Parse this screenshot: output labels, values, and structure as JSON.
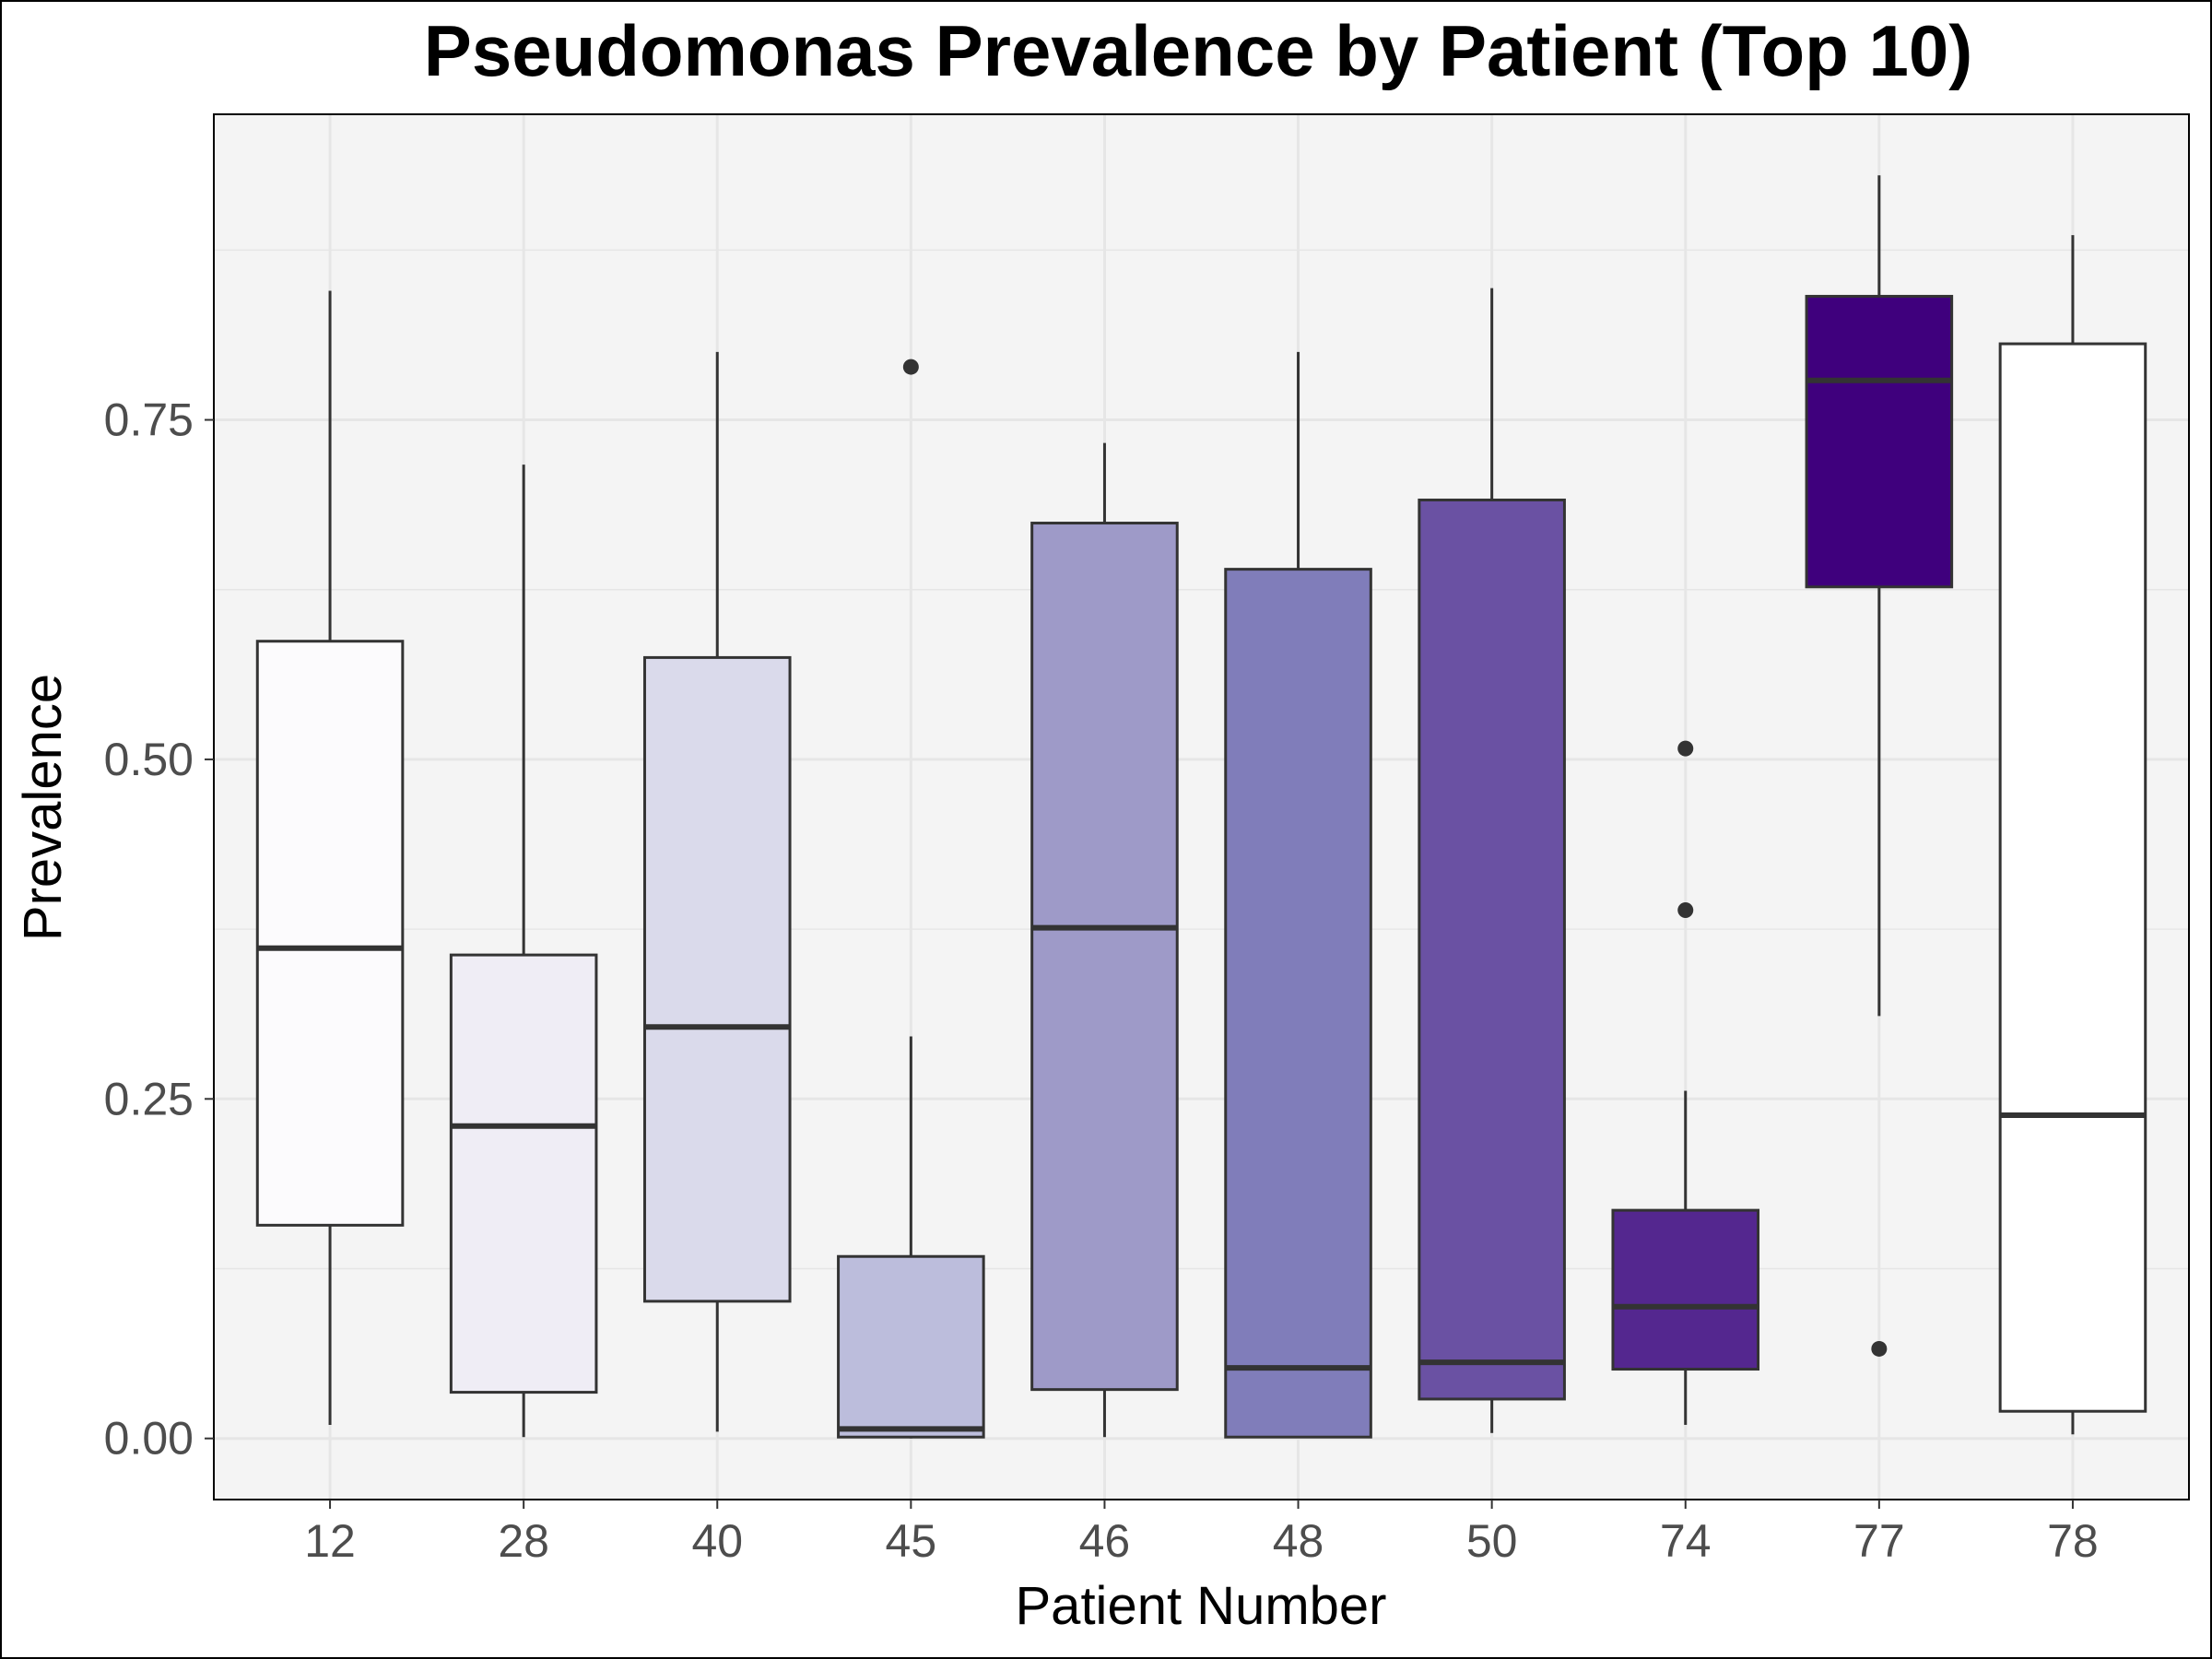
{
  "chart_data": {
    "type": "boxplot",
    "title": "Pseudomonas Prevalence by Patient (Top 10)",
    "xlabel": "Patient Number",
    "ylabel": "Prevalence",
    "ylim": [
      -0.045,
      0.975
    ],
    "yticks": [
      {
        "value": 0.0,
        "label": "0.00"
      },
      {
        "value": 0.25,
        "label": "0.25"
      },
      {
        "value": 0.5,
        "label": "0.50"
      },
      {
        "value": 0.75,
        "label": "0.75"
      }
    ],
    "grid": true,
    "legend": "none",
    "categories": [
      "12",
      "28",
      "40",
      "45",
      "46",
      "48",
      "50",
      "74",
      "77",
      "78"
    ],
    "boxes": [
      {
        "category": "12",
        "whisker_low": 0.01,
        "q1": 0.157,
        "median": 0.361,
        "q3": 0.587,
        "whisker_high": 0.845,
        "outliers": [],
        "fill": "#fcfbfd"
      },
      {
        "category": "28",
        "whisker_low": 0.001,
        "q1": 0.034,
        "median": 0.23,
        "q3": 0.356,
        "whisker_high": 0.717,
        "outliers": [],
        "fill": "#efedf5"
      },
      {
        "category": "40",
        "whisker_low": 0.005,
        "q1": 0.101,
        "median": 0.303,
        "q3": 0.575,
        "whisker_high": 0.8,
        "outliers": [],
        "fill": "#dadaeb"
      },
      {
        "category": "45",
        "whisker_low": 0.0,
        "q1": 0.001,
        "median": 0.007,
        "q3": 0.134,
        "whisker_high": 0.296,
        "outliers": [
          0.789
        ],
        "fill": "#bcbddc"
      },
      {
        "category": "46",
        "whisker_low": 0.001,
        "q1": 0.036,
        "median": 0.376,
        "q3": 0.674,
        "whisker_high": 0.733,
        "outliers": [],
        "fill": "#9e9ac8"
      },
      {
        "category": "48",
        "whisker_low": 0.001,
        "q1": 0.001,
        "median": 0.052,
        "q3": 0.64,
        "whisker_high": 0.8,
        "outliers": [],
        "fill": "#807dba"
      },
      {
        "category": "50",
        "whisker_low": 0.004,
        "q1": 0.029,
        "median": 0.056,
        "q3": 0.691,
        "whisker_high": 0.847,
        "outliers": [],
        "fill": "#6a51a3"
      },
      {
        "category": "74",
        "whisker_low": 0.01,
        "q1": 0.051,
        "median": 0.097,
        "q3": 0.168,
        "whisker_high": 0.256,
        "outliers": [
          0.389,
          0.508
        ],
        "fill": "#54278f"
      },
      {
        "category": "77",
        "whisker_low": 0.311,
        "q1": 0.627,
        "median": 0.779,
        "q3": 0.841,
        "whisker_high": 0.93,
        "outliers": [
          0.066
        ],
        "fill": "#3f007d"
      },
      {
        "category": "78",
        "whisker_low": 0.003,
        "q1": 0.02,
        "median": 0.238,
        "q3": 0.806,
        "whisker_high": 0.886,
        "outliers": [],
        "fill": "#ffffff"
      }
    ],
    "colors": {
      "panel_background": "#f4f4f4",
      "grid": "#e6e6e6",
      "box_outline": "#333333",
      "tick_label": "#4d4d4d"
    }
  }
}
